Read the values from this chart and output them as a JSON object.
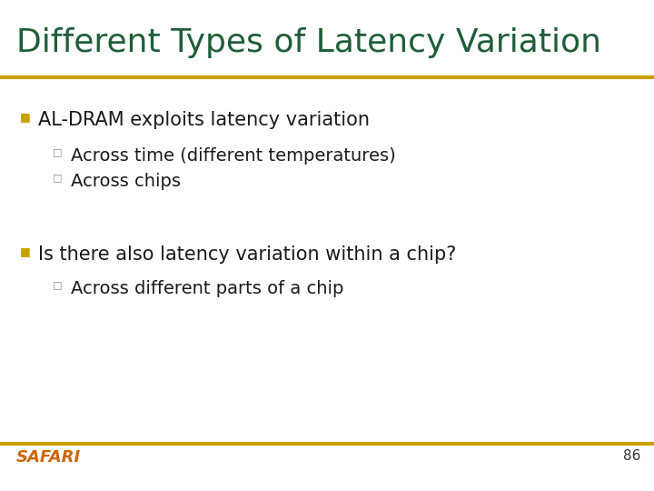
{
  "title": "Different Types of Latency Variation",
  "title_color": "#1e5e38",
  "title_fontsize": 26,
  "background_color": "#ffffff",
  "separator_color": "#c8a000",
  "bullet_marker_color": "#c8a000",
  "bullet_fontsize": 15,
  "sub_bullet_fontsize": 14,
  "sub_bullet_marker_color": "#888888",
  "bullet1_text": "AL-DRAM exploits latency variation",
  "sub1_1": "Across time (different temperatures)",
  "sub1_2": "Across chips",
  "bullet2_text": "Is there also latency variation within a chip?",
  "sub2_1": "Across different parts of a chip",
  "footer_text": "SAFARI",
  "footer_color": "#cc6600",
  "footer_fontsize": 13,
  "page_number": "86",
  "page_number_color": "#333333",
  "page_number_fontsize": 11,
  "text_color": "#1a1a1a"
}
